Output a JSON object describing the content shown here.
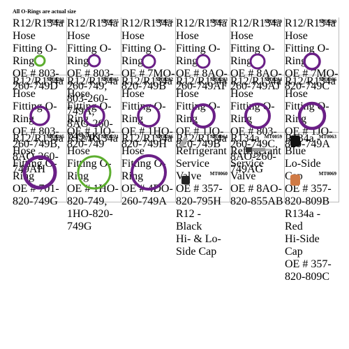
{
  "header": "All O-Rings are actual size",
  "items": [
    {
      "code": "MT0228",
      "lines": [
        "R12/R134a Hose",
        "Fitting O-Ring",
        "OE # 803-260-749D"
      ]
    },
    {
      "code": "MT0275",
      "lines": [
        "R12/R134a Hose",
        "Fitting O-Ring",
        "OE # 803-260-749,",
        "803-260-749A,",
        "8AO-260-749AK"
      ]
    },
    {
      "code": "MT0276",
      "lines": [
        "R12/R134a Hose",
        "Fitting O-Ring",
        "OE # 7MO-820-749B"
      ]
    },
    {
      "code": "MT0277",
      "lines": [
        "R12/R134a Hose",
        "Fitting O-Ring",
        "OE # 8AO-260-749AF"
      ]
    },
    {
      "code": "MT0279",
      "lines": [
        "R12/R134a Hose",
        "Fitting O-Ring",
        "OE # 8AO-260-749AJ"
      ]
    },
    {
      "code": "MT0280",
      "lines": [
        "R12/R134a Hose",
        "Fitting O-Ring",
        "OE # 7MO-820-749C"
      ]
    },
    {
      "code": "MT0281",
      "lines": [
        "R12/R134a Hose",
        "Fitting O-Ring",
        "OE # 803-260-749B,",
        "8AO-260-749AH"
      ]
    },
    {
      "code": "MT0305",
      "lines": [
        "R12/R134a Hose",
        "Fitting O-Ring",
        "OE # 1JO-820-749"
      ]
    },
    {
      "code": "MT0282",
      "lines": [
        "R12/R134a Hose",
        "Fitting O-Ring",
        "OE # 1HO-820-749H"
      ]
    },
    {
      "code": "MT0283",
      "lines": [
        "R12/R134a Hose",
        "Fitting O-Ring",
        "OE # 1JO-820-749B"
      ]
    },
    {
      "code": "MT0284",
      "lines": [
        "R12/R134a Hose",
        "Fitting O-Ring",
        "OE # 803-260-749C,",
        "8AO-260-749AG"
      ]
    },
    {
      "code": "MT0306",
      "lines": [
        "R12/R134a Hose",
        "Fitting O-Ring",
        "OE # 1JO-820-749A"
      ]
    },
    {
      "code": "MT0285",
      "lines": [
        "R12/R134a Hose",
        "Fitting O-Ring",
        "OE # 701-820-749G"
      ]
    },
    {
      "code": "MT0271",
      "lines": [
        "R12/R134a Hose",
        "Fitting O-Ring",
        "OE # 1HO-820-749,",
        "1HO-820-749G"
      ]
    },
    {
      "code": "MT0286",
      "lines": [
        "R12/R134a Hose",
        "Fitting O-Ring",
        "OE # 4DO-260-749A"
      ]
    },
    {
      "code": "MT0064",
      "lines": [
        "R12/R134a Refrigerant",
        "Service Valve",
        "OE # 357-820-795H"
      ],
      "sub": {
        "code": "MT0060",
        "lines": [
          "R12 - Black",
          "Hi- & Lo-Side Cap"
        ]
      }
    },
    {
      "code": "MT0059",
      "lines": [
        "R134a Refrigerant",
        "Service Valve",
        "OE # 8AO-820-855AB"
      ]
    },
    {
      "code": "MT0063",
      "lines": [
        "R134a - Blue",
        "Lo-Side Cap",
        "OE # 357-820-809B"
      ],
      "sub": {
        "code": "MT0069",
        "lines": [
          "R134a - Red",
          "Hi-Side Cap",
          "OE # 357-820-809C"
        ]
      }
    }
  ]
}
